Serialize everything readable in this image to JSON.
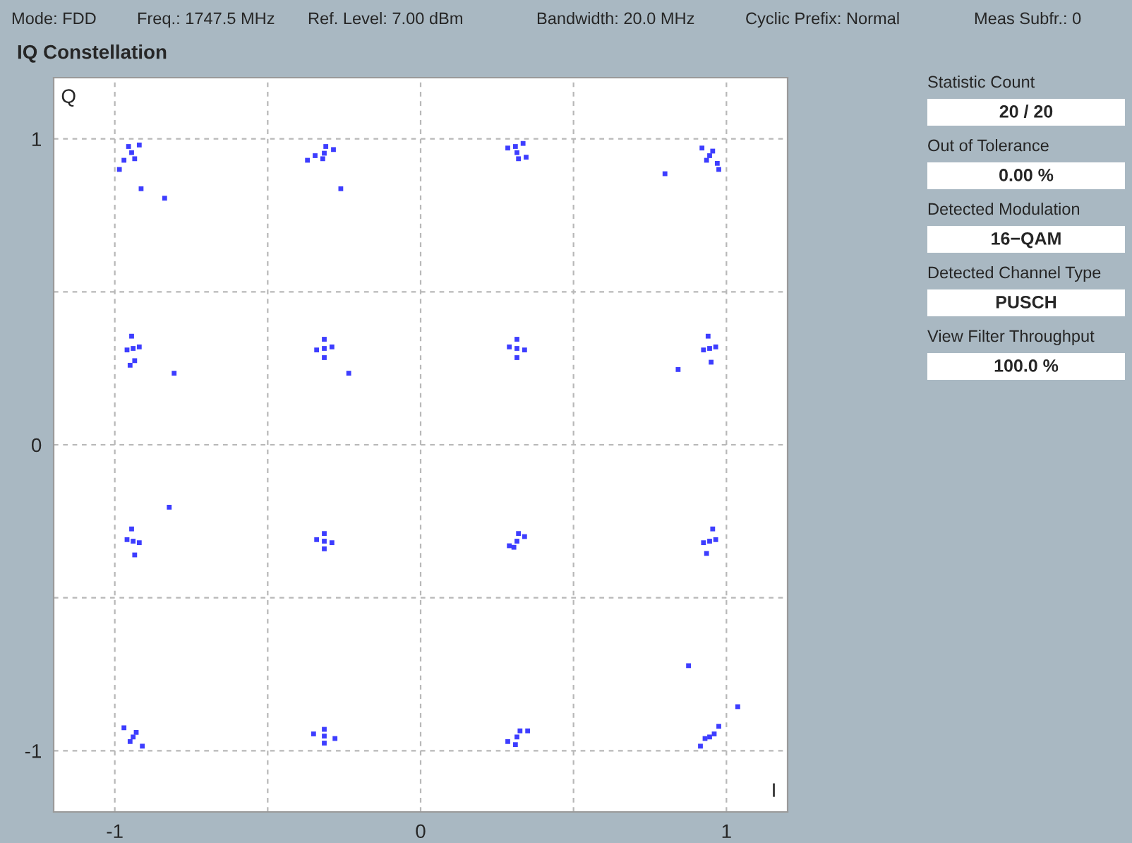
{
  "chart_data": {
    "type": "scatter",
    "title": "IQ Constellation",
    "xlabel": "I",
    "ylabel": "Q",
    "annotations": [
      "Mode: FDD",
      "Freq.: 1747.5 MHz",
      "Ref. Level: 7.00 dBm",
      "Bandwidth: 20.0 MHz",
      "Cyclic Prefix: Normal",
      "Meas Subfr.: 0",
      "Statistic Count",
      "20 / 20",
      "Out of Tolerance",
      "0.00 %",
      "Detected Modulation",
      "16−QAM",
      "Detected Channel Type",
      "PUSCH",
      "View Filter Throughput",
      "100.0 %"
    ],
    "series": [
      {
        "color": "#3d3dff",
        "x": [
          -0.945,
          -0.97,
          -0.92,
          -0.955,
          -0.935,
          -0.985,
          -0.315,
          -0.345,
          -0.285,
          -0.32,
          -0.31,
          -0.37,
          0.315,
          0.285,
          0.345,
          0.31,
          0.32,
          0.335,
          0.945,
          0.92,
          0.97,
          0.935,
          0.955,
          0.975,
          -0.94,
          -0.945,
          -0.935,
          -0.96,
          -0.92,
          -0.95,
          -0.315,
          -0.34,
          -0.29,
          -0.315,
          -0.315,
          0.315,
          0.29,
          0.34,
          0.315,
          0.315,
          0.945,
          0.94,
          0.95,
          0.925,
          0.965,
          -0.94,
          -0.945,
          -0.935,
          -0.96,
          -0.92,
          -0.315,
          -0.34,
          -0.29,
          -0.315,
          -0.315,
          0.315,
          0.29,
          0.34,
          0.32,
          0.305,
          0.945,
          0.955,
          0.935,
          0.925,
          0.965,
          -0.94,
          -0.97,
          -0.91,
          -0.95,
          -0.93,
          -0.315,
          -0.35,
          -0.28,
          -0.315,
          -0.315,
          0.315,
          0.285,
          0.35,
          0.31,
          0.325,
          0.945,
          0.915,
          0.975,
          0.93,
          0.96,
          -0.914,
          -0.837,
          -0.261,
          0.799,
          -0.806,
          -0.235,
          0.842,
          -0.822,
          0.876,
          1.037
        ],
        "values": [
          0.955,
          0.93,
          0.98,
          0.975,
          0.935,
          0.9,
          0.953,
          0.945,
          0.965,
          0.935,
          0.975,
          0.93,
          0.955,
          0.97,
          0.94,
          0.975,
          0.935,
          0.985,
          0.945,
          0.97,
          0.92,
          0.93,
          0.96,
          0.9,
          0.315,
          0.355,
          0.275,
          0.31,
          0.32,
          0.26,
          0.315,
          0.31,
          0.32,
          0.345,
          0.285,
          0.315,
          0.32,
          0.31,
          0.345,
          0.285,
          0.315,
          0.355,
          0.27,
          0.31,
          0.32,
          -0.315,
          -0.275,
          -0.36,
          -0.31,
          -0.32,
          -0.315,
          -0.31,
          -0.32,
          -0.29,
          -0.34,
          -0.315,
          -0.33,
          -0.3,
          -0.29,
          -0.335,
          -0.315,
          -0.275,
          -0.355,
          -0.32,
          -0.31,
          -0.955,
          -0.925,
          -0.985,
          -0.97,
          -0.94,
          -0.952,
          -0.945,
          -0.96,
          -0.93,
          -0.975,
          -0.955,
          -0.97,
          -0.935,
          -0.98,
          -0.935,
          -0.955,
          -0.985,
          -0.92,
          -0.96,
          -0.945,
          0.837,
          0.806,
          0.837,
          0.886,
          0.234,
          0.234,
          0.246,
          -0.204,
          -0.722,
          -0.856
        ]
      }
    ],
    "xlim": [
      -1.2,
      1.2
    ],
    "ylim": [
      -1.2,
      1.2
    ],
    "xticks": [
      -1,
      {
        "value": -0.5,
        "label": null
      },
      0,
      {
        "value": 0.5,
        "label": null
      },
      1
    ],
    "yticks": [
      -1,
      {
        "value": -0.5,
        "label": null
      },
      0,
      {
        "value": 0.5,
        "label": null
      },
      1
    ],
    "grid": true,
    "marker": "square",
    "legend": false
  }
}
